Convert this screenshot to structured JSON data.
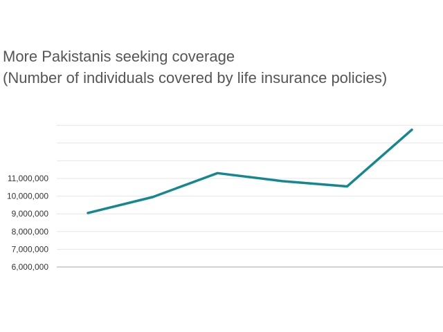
{
  "chart_data": {
    "type": "line",
    "title_line1": "More Pakistanis seeking coverage",
    "title_line2": "(Number of individuals covered by life insurance policies)",
    "xlabel": "",
    "ylabel": "",
    "ylim": [
      6000000,
      14000000
    ],
    "y_ticks": [
      6000000,
      7000000,
      8000000,
      9000000,
      10000000,
      11000000
    ],
    "y_tick_labels": [
      "6,000,000",
      "7,000,000",
      "8,000,000",
      "9,000,000",
      "10,000,000",
      "11,000,000"
    ],
    "series": [
      {
        "name": "Individuals covered",
        "color": "#15878f",
        "values": [
          9050000,
          9950000,
          11300000,
          10850000,
          10550000,
          13750000
        ]
      }
    ]
  }
}
